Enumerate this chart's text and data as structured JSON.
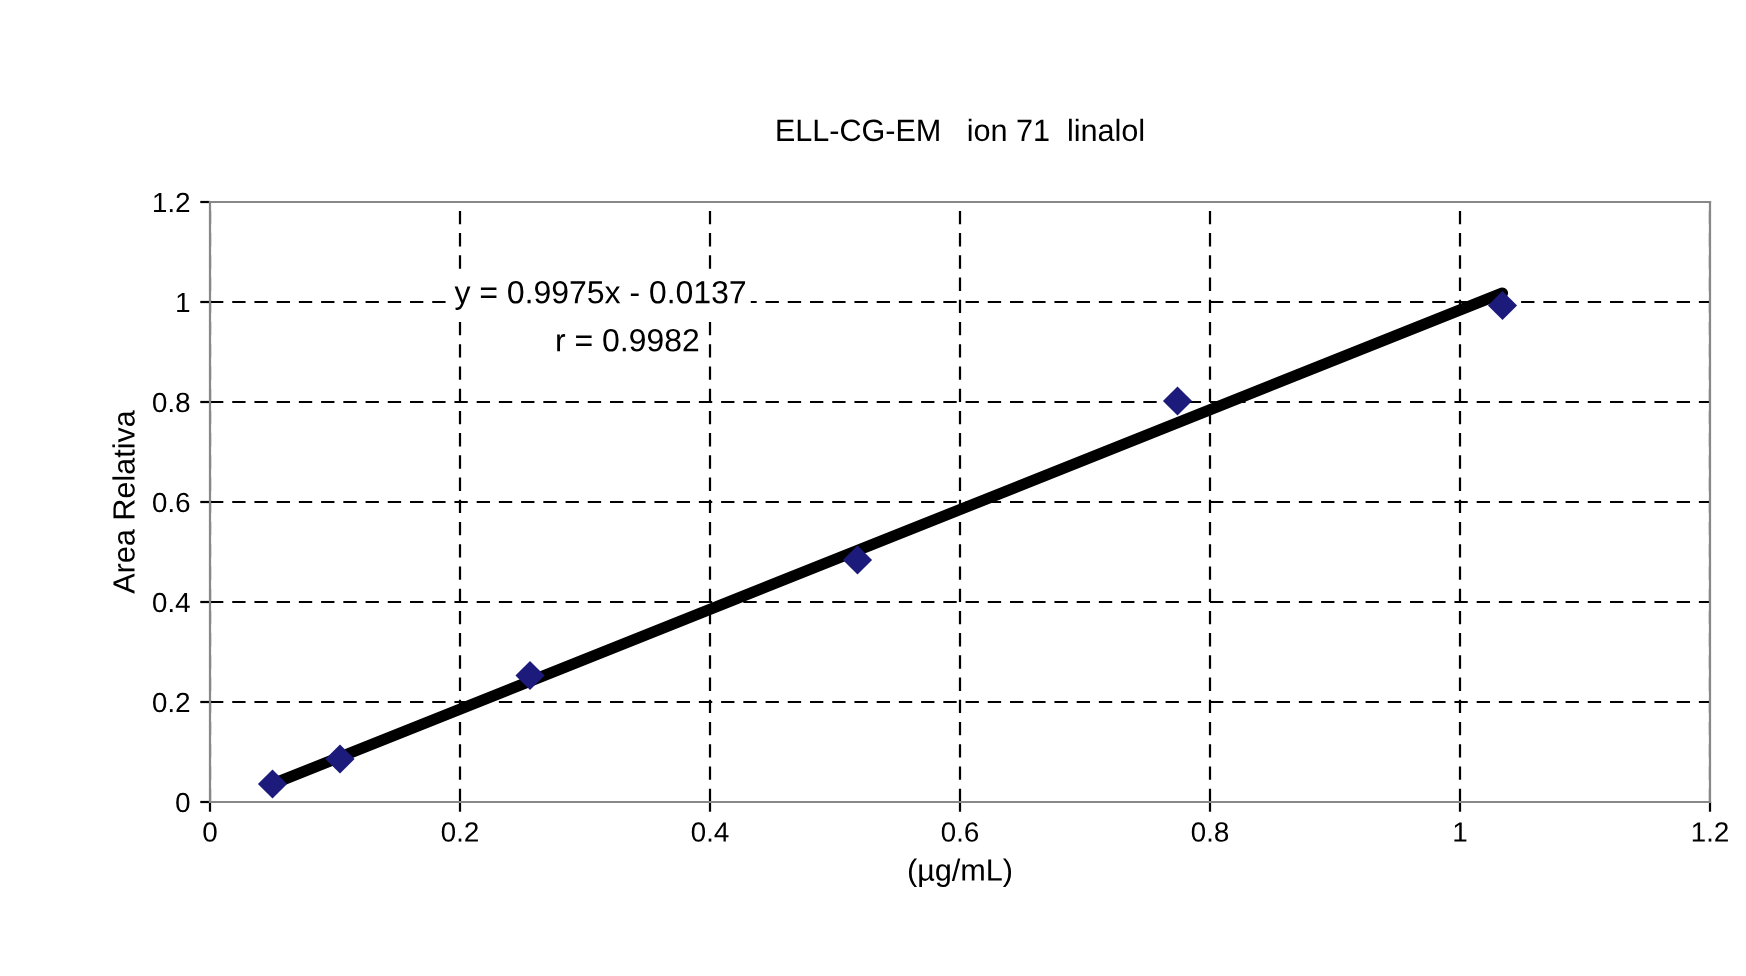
{
  "chart_data": {
    "type": "scatter",
    "title": "ELL-CG-EM   ion 71  linalol",
    "xlabel": "(µg/mL)",
    "ylabel": "Area Relativa",
    "series": [
      {
        "color": "#1c1a7a",
        "marker": "diamond",
        "x": [
          0.05,
          0.104,
          0.256,
          0.518,
          0.774,
          1.034
        ],
        "values": [
          0.036,
          0.086,
          0.253,
          0.484,
          0.802,
          0.993
        ]
      },
      {
        "type": "line",
        "color": "#000000",
        "marker": "none",
        "x": [
          0.05,
          1.034
        ],
        "values": [
          0.036,
          1.018
        ]
      }
    ],
    "annotations": [
      "y = 0.9975x - 0.0137",
      "r = 0.9982"
    ],
    "xlim": [
      0,
      1.2
    ],
    "ylim": [
      0,
      1.2
    ],
    "xticks": [
      0,
      0.2,
      0.4,
      0.6,
      0.8,
      1,
      1.2
    ],
    "yticks": [
      0,
      0.2,
      0.4,
      0.6,
      0.8,
      1,
      1.2
    ],
    "grid": true,
    "legend": false
  }
}
